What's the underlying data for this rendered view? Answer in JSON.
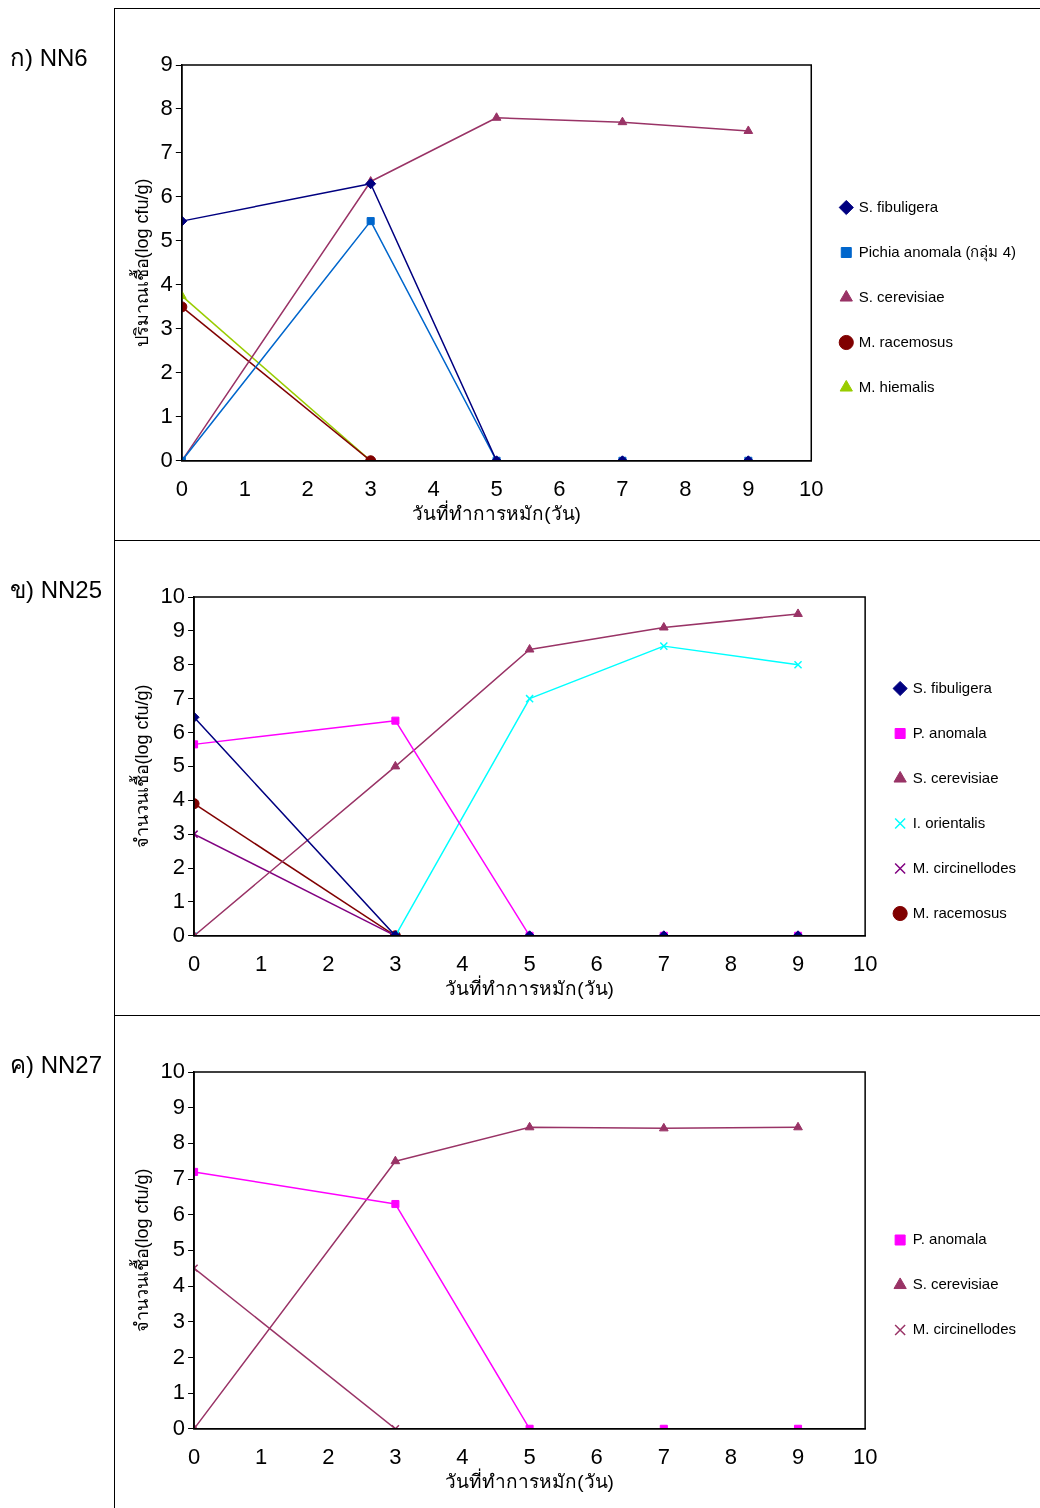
{
  "chart_data": [
    {
      "type": "line",
      "title": "ก) NN6",
      "xlabel": "วันที่ทำการหมัก(วัน)",
      "ylabel": "ปริมาณเชื้อ(log cfu/g)",
      "x": [
        0,
        3,
        5,
        7,
        9
      ],
      "xlim": [
        0,
        10
      ],
      "xticks": [
        0,
        1,
        2,
        3,
        4,
        5,
        6,
        7,
        8,
        9,
        10
      ],
      "ylim": [
        0,
        9
      ],
      "yticks": [
        0,
        1,
        2,
        3,
        4,
        5,
        6,
        7,
        8,
        9
      ],
      "grid": false,
      "legend": "right",
      "series": [
        {
          "name": "S. fibuligera",
          "color": "#000080",
          "marker": "diamond",
          "values": [
            5.45,
            6.3,
            0,
            0,
            0
          ]
        },
        {
          "name": "Pichia anomala (กลุ่ม 4)",
          "color": "#0066cc",
          "marker": "square",
          "values": [
            0,
            5.45,
            0,
            0,
            0
          ]
        },
        {
          "name": "S. cerevisiae",
          "color": "#993366",
          "marker": "triangle",
          "values": [
            0,
            6.35,
            7.8,
            7.7,
            7.5
          ]
        },
        {
          "name": "M. racemosus",
          "color": "#800000",
          "marker": "circle",
          "values": [
            3.5,
            0,
            null,
            null,
            null
          ]
        },
        {
          "name": "M. hiemalis",
          "color": "#99cc00",
          "marker": "triangle",
          "values": [
            3.75,
            0,
            null,
            null,
            null
          ]
        }
      ]
    },
    {
      "type": "line",
      "title": "ข) NN25",
      "xlabel": "วันที่ทำการหมัก(วัน)",
      "ylabel": "จำนวนเชื้อ(log cfu/g)",
      "x": [
        0,
        3,
        5,
        7,
        9
      ],
      "xlim": [
        0,
        10
      ],
      "xticks": [
        0,
        1,
        2,
        3,
        4,
        5,
        6,
        7,
        8,
        9,
        10
      ],
      "ylim": [
        0,
        10
      ],
      "yticks": [
        0,
        1,
        2,
        3,
        4,
        5,
        6,
        7,
        8,
        9,
        10
      ],
      "grid": false,
      "legend": "right",
      "series": [
        {
          "name": "S. fibuligera",
          "color": "#000080",
          "marker": "diamond",
          "values": [
            6.45,
            0,
            0,
            0,
            0
          ]
        },
        {
          "name": "P. anomala",
          "color": "#ff00ff",
          "marker": "square",
          "values": [
            5.65,
            6.35,
            0,
            0,
            0
          ]
        },
        {
          "name": "S. cerevisiae",
          "color": "#993366",
          "marker": "triangle",
          "values": [
            0,
            5,
            8.45,
            9.1,
            9.5
          ]
        },
        {
          "name": "I. orientalis",
          "color": "#00ffff",
          "marker": "cross",
          "values": [
            0,
            0,
            7,
            8.55,
            8
          ]
        },
        {
          "name": "M. circinellodes",
          "color": "#800080",
          "marker": "cross",
          "values": [
            3,
            0,
            null,
            null,
            null
          ]
        },
        {
          "name": "M. racemosus",
          "color": "#800000",
          "marker": "circle",
          "values": [
            3.9,
            0,
            null,
            null,
            null
          ]
        }
      ]
    },
    {
      "type": "line",
      "title": "ค) NN27",
      "xlabel": "วันที่ทำการหมัก(วัน)",
      "ylabel": "จำนวนเชื้อ(log cfu/g)",
      "x": [
        0,
        3,
        5,
        7,
        9
      ],
      "xlim": [
        0,
        10
      ],
      "xticks": [
        0,
        1,
        2,
        3,
        4,
        5,
        6,
        7,
        8,
        9,
        10
      ],
      "ylim": [
        0,
        10
      ],
      "yticks": [
        0,
        1,
        2,
        3,
        4,
        5,
        6,
        7,
        8,
        9,
        10
      ],
      "grid": false,
      "legend": "right",
      "series": [
        {
          "name": "P. anomala",
          "color": "#ff00ff",
          "marker": "square",
          "values": [
            7.2,
            6.3,
            0,
            0,
            0
          ]
        },
        {
          "name": "S. cerevisiae",
          "color": "#993366",
          "marker": "triangle",
          "values": [
            0,
            7.5,
            8.45,
            8.42,
            8.45
          ]
        },
        {
          "name": "M. circinellodes",
          "color": "#993366",
          "marker": "cross",
          "values": [
            4.5,
            0,
            null,
            null,
            null
          ]
        }
      ]
    }
  ]
}
